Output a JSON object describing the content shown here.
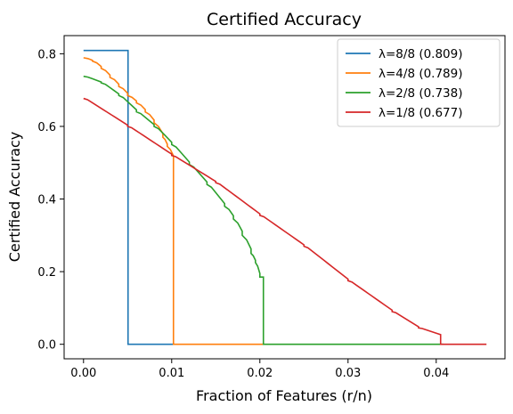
{
  "chart_data": {
    "type": "line",
    "title": "Certified Accuracy",
    "xlabel": "Fraction of Features (r/n)",
    "ylabel": "Certified Accuracy",
    "xlim": [
      -0.0022,
      0.0478
    ],
    "ylim": [
      -0.04,
      0.85
    ],
    "xticks": [
      0.0,
      0.01,
      0.02,
      0.03,
      0.04
    ],
    "xtick_labels": [
      "0.00",
      "0.01",
      "0.02",
      "0.03",
      "0.04"
    ],
    "yticks": [
      0.0,
      0.2,
      0.4,
      0.6,
      0.8
    ],
    "ytick_labels": [
      "0.0",
      "0.2",
      "0.4",
      "0.6",
      "0.8"
    ],
    "grid": false,
    "legend_position": "top-right",
    "series": [
      {
        "name": "λ=8/8 (0.809)",
        "color": "#1f77b4",
        "points": [
          [
            0.0,
            0.809
          ],
          [
            0.00505,
            0.809
          ],
          [
            0.00505,
            0.0
          ],
          [
            0.0103,
            0.0
          ]
        ]
      },
      {
        "name": "λ=4/8 (0.789)",
        "color": "#ff7f0e",
        "points": [
          [
            0.0,
            0.789
          ],
          [
            0.001,
            0.78
          ],
          [
            0.002,
            0.76
          ],
          [
            0.003,
            0.735
          ],
          [
            0.004,
            0.71
          ],
          [
            0.005,
            0.685
          ],
          [
            0.006,
            0.665
          ],
          [
            0.007,
            0.64
          ],
          [
            0.008,
            0.61
          ],
          [
            0.009,
            0.57
          ],
          [
            0.0095,
            0.545
          ],
          [
            0.0102,
            0.51
          ],
          [
            0.0102,
            0.0
          ],
          [
            0.0205,
            0.0
          ]
        ]
      },
      {
        "name": "λ=2/8 (0.738)",
        "color": "#2ca02c",
        "points": [
          [
            0.0,
            0.738
          ],
          [
            0.002,
            0.72
          ],
          [
            0.004,
            0.685
          ],
          [
            0.006,
            0.64
          ],
          [
            0.008,
            0.6
          ],
          [
            0.01,
            0.55
          ],
          [
            0.012,
            0.495
          ],
          [
            0.014,
            0.44
          ],
          [
            0.016,
            0.38
          ],
          [
            0.017,
            0.345
          ],
          [
            0.018,
            0.3
          ],
          [
            0.019,
            0.25
          ],
          [
            0.0195,
            0.225
          ],
          [
            0.02,
            0.185
          ],
          [
            0.0204,
            0.185
          ],
          [
            0.0204,
            0.0
          ],
          [
            0.0408,
            0.0
          ]
        ]
      },
      {
        "name": "λ=1/8 (0.677)",
        "color": "#d62728",
        "points": [
          [
            0.0,
            0.677
          ],
          [
            0.005,
            0.6
          ],
          [
            0.01,
            0.52
          ],
          [
            0.015,
            0.445
          ],
          [
            0.02,
            0.355
          ],
          [
            0.025,
            0.27
          ],
          [
            0.03,
            0.175
          ],
          [
            0.035,
            0.09
          ],
          [
            0.038,
            0.045
          ],
          [
            0.0405,
            0.025
          ],
          [
            0.0405,
            0.0
          ],
          [
            0.0457,
            0.0
          ]
        ]
      }
    ]
  }
}
